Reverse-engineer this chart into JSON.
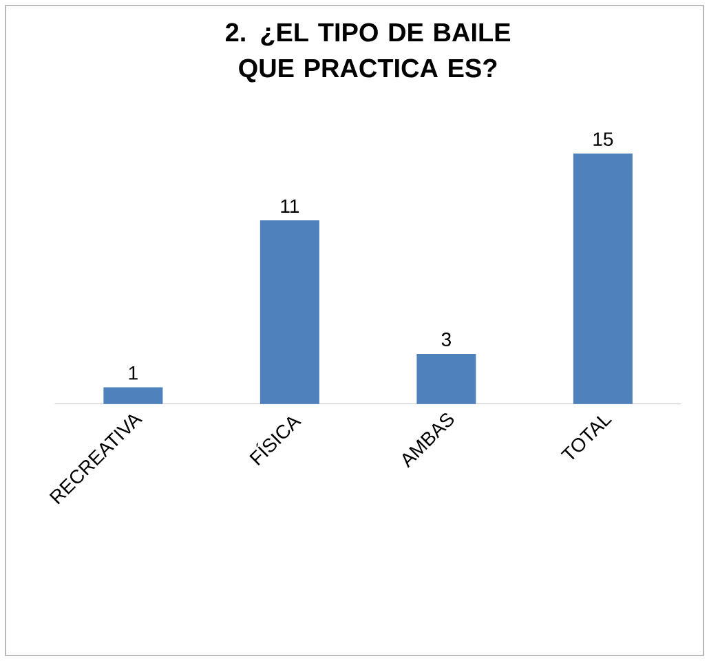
{
  "chart_data": {
    "type": "bar",
    "title": "2. ¿EL TIPO DE BAILE QUE PRACTICA ES?",
    "categories": [
      "RECREATIVA",
      "FÍSICA",
      "AMBAS",
      "TOTAL"
    ],
    "values": [
      1,
      11,
      3,
      15
    ],
    "color": "#4f81bd",
    "data_labels": true
  }
}
